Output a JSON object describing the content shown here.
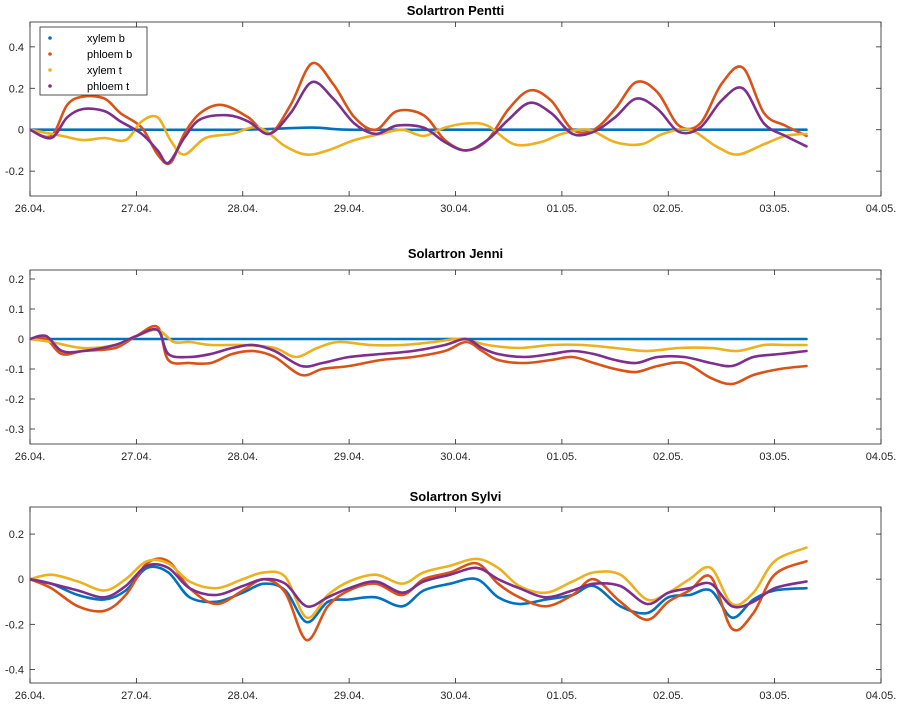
{
  "colors": {
    "xylem_b": "#0072BD",
    "phloem_b": "#D95319",
    "xylem_t": "#EDB120",
    "phloem_t": "#7E2F8E"
  },
  "chart_data": [
    {
      "type": "line",
      "title": "Solartron Pentti",
      "xlabel": "",
      "ylabel": "",
      "x_ticks": [
        "26.04.",
        "27.04.",
        "28.04.",
        "29.04.",
        "30.04.",
        "01.05.",
        "02.05.",
        "03.05.",
        "04.05."
      ],
      "xlim_days": [
        0,
        8
      ],
      "ylim": [
        -0.32,
        0.52
      ],
      "y_ticks": [
        "0.4",
        "0.2",
        "0",
        "-0.2"
      ],
      "y_tick_values": [
        0.4,
        0.2,
        0,
        -0.2
      ],
      "legend": "top-left",
      "grid": false,
      "series": [
        {
          "name": "xylem b",
          "color": "#0072BD",
          "x": [
            0,
            0.5,
            1,
            2,
            2.65,
            3,
            4,
            5,
            6,
            7,
            7.3
          ],
          "y": [
            0,
            0,
            0,
            0,
            0.01,
            0,
            0,
            0,
            0,
            0,
            0
          ]
        },
        {
          "name": "phloem b",
          "color": "#D95319",
          "x": [
            0,
            0.2,
            0.35,
            0.5,
            0.7,
            0.85,
            1.05,
            1.2,
            1.32,
            1.45,
            1.6,
            1.8,
            2.05,
            2.25,
            2.45,
            2.65,
            2.85,
            3.05,
            3.25,
            3.45,
            3.7,
            3.9,
            4.1,
            4.3,
            4.5,
            4.7,
            4.9,
            5.1,
            5.3,
            5.5,
            5.7,
            5.9,
            6.1,
            6.3,
            6.5,
            6.7,
            6.9,
            7.1,
            7.3
          ],
          "y": [
            0,
            -0.03,
            0.12,
            0.16,
            0.15,
            0.08,
            0.01,
            -0.12,
            -0.16,
            -0.02,
            0.08,
            0.12,
            0.06,
            -0.02,
            0.12,
            0.32,
            0.22,
            0.06,
            0,
            0.09,
            0.07,
            -0.05,
            -0.1,
            -0.05,
            0.1,
            0.19,
            0.14,
            0,
            0,
            0.1,
            0.23,
            0.18,
            0.02,
            0.03,
            0.22,
            0.3,
            0.08,
            0.02,
            -0.03
          ]
        },
        {
          "name": "xylem t",
          "color": "#EDB120",
          "x": [
            0,
            0.3,
            0.5,
            0.7,
            0.9,
            1.05,
            1.2,
            1.32,
            1.45,
            1.65,
            1.9,
            2.15,
            2.4,
            2.6,
            2.8,
            3.05,
            3.3,
            3.5,
            3.7,
            3.9,
            4.1,
            4.3,
            4.55,
            4.8,
            5.0,
            5.25,
            5.5,
            5.75,
            5.95,
            6.2,
            6.45,
            6.65,
            6.9,
            7.1,
            7.3
          ],
          "y": [
            0,
            -0.03,
            -0.05,
            -0.04,
            -0.05,
            0.04,
            0.06,
            -0.05,
            -0.12,
            -0.04,
            -0.02,
            0.01,
            -0.08,
            -0.12,
            -0.1,
            -0.05,
            -0.02,
            0,
            -0.03,
            0.01,
            0.03,
            0.02,
            -0.07,
            -0.06,
            -0.02,
            0,
            -0.06,
            -0.07,
            -0.02,
            0,
            -0.08,
            -0.12,
            -0.07,
            -0.03,
            -0.02
          ]
        },
        {
          "name": "phloem t",
          "color": "#7E2F8E",
          "x": [
            0,
            0.2,
            0.35,
            0.5,
            0.7,
            0.85,
            1.05,
            1.2,
            1.3,
            1.45,
            1.6,
            1.85,
            2.05,
            2.25,
            2.45,
            2.65,
            2.85,
            3.05,
            3.25,
            3.45,
            3.7,
            3.9,
            4.1,
            4.3,
            4.5,
            4.7,
            4.9,
            5.1,
            5.3,
            5.5,
            5.7,
            5.9,
            6.1,
            6.3,
            6.5,
            6.7,
            6.9,
            7.1,
            7.3
          ],
          "y": [
            0,
            -0.04,
            0.06,
            0.1,
            0.09,
            0.04,
            -0.02,
            -0.1,
            -0.16,
            -0.04,
            0.05,
            0.07,
            0.04,
            -0.02,
            0.08,
            0.23,
            0.15,
            0.03,
            -0.02,
            0.02,
            0.01,
            -0.06,
            -0.1,
            -0.05,
            0.05,
            0.13,
            0.08,
            -0.02,
            -0.01,
            0.06,
            0.15,
            0.1,
            -0.01,
            0.01,
            0.14,
            0.2,
            0.03,
            -0.03,
            -0.08
          ]
        }
      ]
    },
    {
      "type": "line",
      "title": "Solartron Jenni",
      "xlabel": "",
      "ylabel": "",
      "x_ticks": [
        "26.04.",
        "27.04.",
        "28.04.",
        "29.04.",
        "30.04.",
        "01.05.",
        "02.05.",
        "03.05.",
        "04.05."
      ],
      "xlim_days": [
        0,
        8
      ],
      "ylim": [
        -0.35,
        0.23
      ],
      "y_ticks": [
        "0.2",
        "0.1",
        "0",
        "-0.1",
        "-0.2",
        "-0.3"
      ],
      "y_tick_values": [
        0.2,
        0.1,
        0,
        -0.1,
        -0.2,
        -0.3
      ],
      "legend": "none",
      "grid": false,
      "series": [
        {
          "name": "xylem b",
          "color": "#0072BD",
          "x": [
            0,
            1,
            2,
            3,
            4,
            4.4,
            5,
            6,
            7,
            7.3
          ],
          "y": [
            0,
            0,
            0,
            0,
            0,
            0,
            0,
            0,
            0,
            0
          ]
        },
        {
          "name": "phloem b",
          "color": "#D95319",
          "x": [
            0,
            0.15,
            0.3,
            0.5,
            0.8,
            1.0,
            1.2,
            1.3,
            1.5,
            1.7,
            1.9,
            2.1,
            2.3,
            2.55,
            2.75,
            3.0,
            3.3,
            3.6,
            3.9,
            4.1,
            4.25,
            4.4,
            4.65,
            4.9,
            5.1,
            5.3,
            5.5,
            5.7,
            5.9,
            6.15,
            6.4,
            6.6,
            6.8,
            7.05,
            7.3
          ],
          "y": [
            0,
            0,
            -0.05,
            -0.04,
            -0.03,
            0.01,
            0.04,
            -0.07,
            -0.08,
            -0.08,
            -0.05,
            -0.04,
            -0.06,
            -0.12,
            -0.1,
            -0.09,
            -0.07,
            -0.06,
            -0.04,
            -0.01,
            -0.04,
            -0.07,
            -0.08,
            -0.07,
            -0.06,
            -0.08,
            -0.1,
            -0.11,
            -0.09,
            -0.08,
            -0.13,
            -0.15,
            -0.12,
            -0.1,
            -0.09
          ]
        },
        {
          "name": "xylem t",
          "color": "#EDB120",
          "x": [
            0,
            0.2,
            0.5,
            0.8,
            1.0,
            1.2,
            1.35,
            1.5,
            1.7,
            2.0,
            2.3,
            2.5,
            2.7,
            2.9,
            3.2,
            3.5,
            3.8,
            4.05,
            4.3,
            4.6,
            4.9,
            5.2,
            5.5,
            5.8,
            6.1,
            6.4,
            6.65,
            6.9,
            7.1,
            7.3
          ],
          "y": [
            0,
            -0.01,
            -0.03,
            -0.02,
            0.01,
            0.03,
            -0.01,
            -0.01,
            -0.02,
            -0.02,
            -0.03,
            -0.06,
            -0.03,
            -0.01,
            -0.02,
            -0.02,
            -0.01,
            0,
            -0.02,
            -0.03,
            -0.02,
            -0.02,
            -0.03,
            -0.04,
            -0.03,
            -0.03,
            -0.04,
            -0.02,
            -0.02,
            -0.02
          ]
        },
        {
          "name": "phloem t",
          "color": "#7E2F8E",
          "x": [
            0,
            0.15,
            0.3,
            0.5,
            0.8,
            1.0,
            1.2,
            1.3,
            1.5,
            1.7,
            1.9,
            2.1,
            2.3,
            2.55,
            2.75,
            3.0,
            3.3,
            3.6,
            3.9,
            4.1,
            4.25,
            4.4,
            4.65,
            4.9,
            5.1,
            5.3,
            5.5,
            5.7,
            5.9,
            6.15,
            6.4,
            6.6,
            6.8,
            7.05,
            7.3
          ],
          "y": [
            0,
            0.01,
            -0.04,
            -0.04,
            -0.02,
            0.01,
            0.03,
            -0.05,
            -0.06,
            -0.05,
            -0.03,
            -0.02,
            -0.04,
            -0.09,
            -0.08,
            -0.06,
            -0.05,
            -0.04,
            -0.02,
            0,
            -0.03,
            -0.05,
            -0.06,
            -0.05,
            -0.04,
            -0.05,
            -0.07,
            -0.08,
            -0.06,
            -0.06,
            -0.08,
            -0.09,
            -0.06,
            -0.05,
            -0.04
          ]
        }
      ]
    },
    {
      "type": "line",
      "title": "Solartron Sylvi",
      "xlabel": "",
      "ylabel": "",
      "x_ticks": [
        "26.04.",
        "27.04.",
        "28.04.",
        "29.04.",
        "30.04.",
        "01.05.",
        "02.05.",
        "03.05.",
        "04.05."
      ],
      "xlim_days": [
        0,
        8
      ],
      "ylim": [
        -0.46,
        0.32
      ],
      "y_ticks": [
        "0.2",
        "0",
        "-0.2",
        "-0.4"
      ],
      "y_tick_values": [
        0.2,
        0,
        -0.2,
        -0.4
      ],
      "legend": "none",
      "grid": false,
      "series": [
        {
          "name": "xylem b",
          "color": "#0072BD",
          "x": [
            0,
            0.2,
            0.45,
            0.7,
            0.9,
            1.1,
            1.3,
            1.5,
            1.75,
            2.0,
            2.2,
            2.4,
            2.6,
            2.8,
            3.0,
            3.25,
            3.5,
            3.7,
            3.95,
            4.2,
            4.4,
            4.6,
            4.85,
            5.1,
            5.3,
            5.55,
            5.8,
            6.0,
            6.2,
            6.4,
            6.6,
            6.8,
            7.0,
            7.3
          ],
          "y": [
            0,
            -0.02,
            -0.07,
            -0.09,
            -0.05,
            0.05,
            0.03,
            -0.08,
            -0.1,
            -0.06,
            -0.02,
            -0.05,
            -0.19,
            -0.1,
            -0.09,
            -0.08,
            -0.12,
            -0.05,
            -0.02,
            0,
            -0.08,
            -0.11,
            -0.09,
            -0.07,
            -0.03,
            -0.12,
            -0.15,
            -0.08,
            -0.07,
            -0.05,
            -0.17,
            -0.09,
            -0.05,
            -0.04
          ]
        },
        {
          "name": "phloem b",
          "color": "#D95319",
          "x": [
            0,
            0.2,
            0.45,
            0.7,
            0.9,
            1.1,
            1.3,
            1.5,
            1.75,
            2.0,
            2.2,
            2.4,
            2.6,
            2.8,
            3.0,
            3.25,
            3.5,
            3.7,
            3.95,
            4.2,
            4.4,
            4.6,
            4.85,
            5.1,
            5.3,
            5.55,
            5.8,
            6.0,
            6.2,
            6.4,
            6.6,
            6.8,
            7.0,
            7.3
          ],
          "y": [
            0,
            -0.04,
            -0.12,
            -0.14,
            -0.07,
            0.07,
            0.08,
            -0.04,
            -0.11,
            -0.05,
            0,
            -0.06,
            -0.27,
            -0.12,
            -0.05,
            -0.02,
            -0.07,
            0,
            0.03,
            0.07,
            -0.02,
            -0.08,
            -0.12,
            -0.07,
            0,
            -0.1,
            -0.18,
            -0.1,
            -0.05,
            0.01,
            -0.22,
            -0.15,
            0.02,
            0.08
          ]
        },
        {
          "name": "xylem t",
          "color": "#EDB120",
          "x": [
            0,
            0.2,
            0.45,
            0.7,
            0.9,
            1.1,
            1.3,
            1.5,
            1.75,
            2.0,
            2.2,
            2.4,
            2.6,
            2.8,
            3.0,
            3.25,
            3.5,
            3.7,
            3.95,
            4.2,
            4.4,
            4.6,
            4.85,
            5.1,
            5.3,
            5.55,
            5.8,
            6.0,
            6.2,
            6.4,
            6.6,
            6.8,
            7.0,
            7.3
          ],
          "y": [
            0,
            0.02,
            -0.01,
            -0.05,
            0,
            0.08,
            0.07,
            -0.01,
            -0.04,
            0,
            0.03,
            0.01,
            -0.17,
            -0.07,
            -0.01,
            0.02,
            -0.02,
            0.03,
            0.06,
            0.09,
            0.05,
            -0.03,
            -0.06,
            -0.01,
            0.03,
            0.02,
            -0.09,
            -0.06,
            0,
            0.05,
            -0.11,
            -0.06,
            0.08,
            0.14
          ]
        },
        {
          "name": "phloem t",
          "color": "#7E2F8E",
          "x": [
            0,
            0.2,
            0.45,
            0.7,
            0.9,
            1.1,
            1.3,
            1.5,
            1.75,
            2.0,
            2.2,
            2.4,
            2.6,
            2.8,
            3.0,
            3.25,
            3.5,
            3.7,
            3.95,
            4.2,
            4.4,
            4.6,
            4.85,
            5.1,
            5.3,
            5.55,
            5.8,
            6.0,
            6.2,
            6.4,
            6.6,
            6.8,
            7.0,
            7.3
          ],
          "y": [
            0,
            -0.02,
            -0.05,
            -0.08,
            -0.03,
            0.06,
            0.05,
            -0.04,
            -0.07,
            -0.03,
            0,
            -0.02,
            -0.12,
            -0.08,
            -0.04,
            -0.01,
            -0.06,
            -0.01,
            0.02,
            0.05,
            0,
            -0.04,
            -0.08,
            -0.05,
            -0.02,
            -0.03,
            -0.11,
            -0.06,
            -0.04,
            -0.02,
            -0.12,
            -0.1,
            -0.04,
            -0.01
          ]
        }
      ]
    }
  ]
}
